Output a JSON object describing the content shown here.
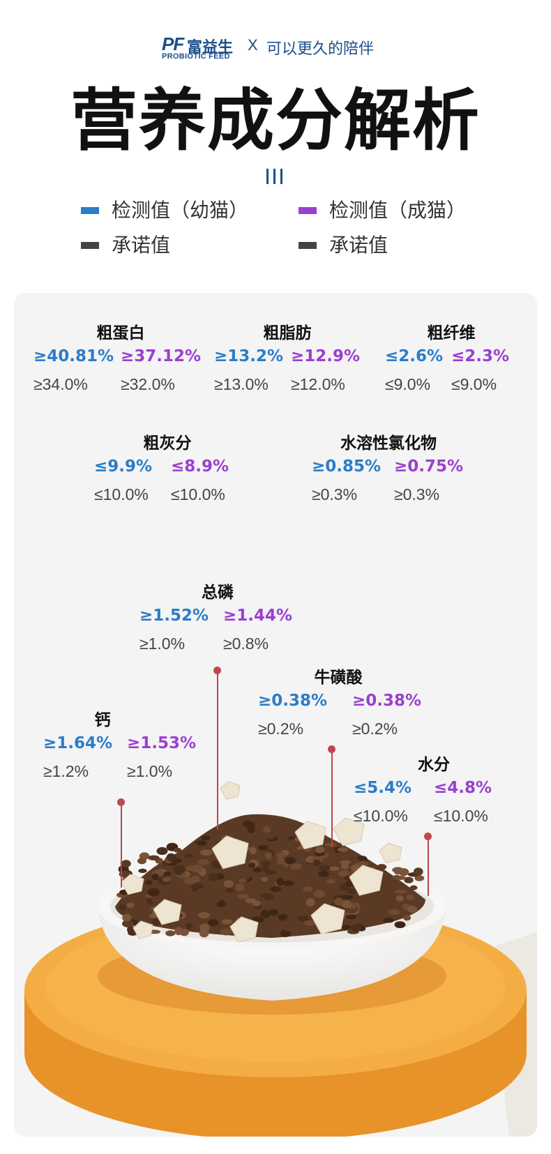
{
  "header": {
    "logo_mark": "PF",
    "logo_cn": "富益生",
    "logo_en": "PROBIOTIC FEED",
    "cross": "X",
    "slogan": "可以更久的陪伴"
  },
  "title": "营养成分解析",
  "legend": [
    {
      "label": "检测值（幼猫）",
      "color": "#2a7dc7"
    },
    {
      "label": "检测值（成猫）",
      "color": "#9b3fd0"
    },
    {
      "label": "承诺值",
      "color": "#444444"
    },
    {
      "label": "承诺值",
      "color": "#444444"
    }
  ],
  "nutrients": {
    "protein": {
      "name": "粗蛋白",
      "kitten": "≥40.81%",
      "adult": "≥37.12%",
      "promise_kitten": "≥34.0%",
      "promise_adult": "≥32.0%"
    },
    "fat": {
      "name": "粗脂肪",
      "kitten": "≥13.2%",
      "adult": "≥12.9%",
      "promise_kitten": "≥13.0%",
      "promise_adult": "≥12.0%"
    },
    "fiber": {
      "name": "粗纤维",
      "kitten": "≤2.6%",
      "adult": "≤2.3%",
      "promise_kitten": "≤9.0%",
      "promise_adult": "≤9.0%"
    },
    "ash": {
      "name": "粗灰分",
      "kitten": "≤9.9%",
      "adult": "≤8.9%",
      "promise_kitten": "≤10.0%",
      "promise_adult": "≤10.0%"
    },
    "chloride": {
      "name": "水溶性氯化物",
      "kitten": "≥0.85%",
      "adult": "≥0.75%",
      "promise_kitten": "≥0.3%",
      "promise_adult": "≥0.3%"
    },
    "phosphorus": {
      "name": "总磷",
      "kitten": "≥1.52%",
      "adult": "≥1.44%",
      "promise_kitten": "≥1.0%",
      "promise_adult": "≥0.8%"
    },
    "taurine": {
      "name": "牛磺酸",
      "kitten": "≥0.38%",
      "adult": "≥0.38%",
      "promise_kitten": "≥0.2%",
      "promise_adult": "≥0.2%"
    },
    "calcium": {
      "name": "钙",
      "kitten": "≥1.64%",
      "adult": "≥1.53%",
      "promise_kitten": "≥1.2%",
      "promise_adult": "≥1.0%"
    },
    "moisture": {
      "name": "水分",
      "kitten": "≤5.4%",
      "adult": "≤4.8%",
      "promise_kitten": "≤10.0%",
      "promise_adult": "≤10.0%"
    }
  },
  "colors": {
    "kitten": "#2a7dc7",
    "adult": "#9b3fd0",
    "promise": "#444444",
    "brand": "#1b4f8a",
    "pointer": "#c0474f",
    "plate": "#f2a93e"
  },
  "icons": {
    "brand": "brand-logo",
    "ornament": "triple-bar-ornament"
  }
}
